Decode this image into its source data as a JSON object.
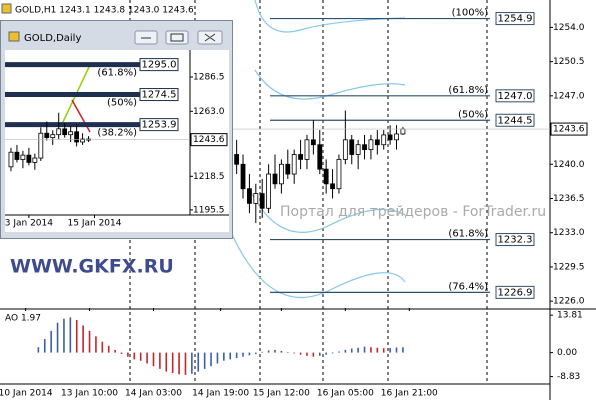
{
  "watermark": "Портал для трейдеров - ForTrader.ru",
  "broker": "WWW.GKFX.RU",
  "chart_data": [
    {
      "type": "candlestick",
      "title": "GOLD,H1  1243.1 1243.8 1243.0 1243.6",
      "xlim": [
        0,
        86
      ],
      "xticks": [
        {
          "value": 4,
          "label": "10 Jan 2014"
        },
        {
          "value": 14,
          "label": "13 Jan 10:00"
        },
        {
          "value": 24,
          "label": "14 Jan 03:00"
        },
        {
          "value": 34.5,
          "label": "14 Jan 19:00"
        },
        {
          "value": 44,
          "label": "15 Jan 12:00"
        },
        {
          "value": 54,
          "label": "16 Jan 05:00"
        },
        {
          "value": 64,
          "label": "16 Jan 21:00"
        }
      ],
      "ylim": [
        1225.3,
        1256.8
      ],
      "yticks": [
        {
          "value": 1254,
          "label": "1254.0"
        },
        {
          "value": 1250.5,
          "label": "1250.5"
        },
        {
          "value": 1247,
          "label": "1247.0"
        },
        {
          "value": 1240,
          "label": "1240.0"
        },
        {
          "value": 1236.5,
          "label": "1236.5"
        },
        {
          "value": 1233,
          "label": "1233.0"
        },
        {
          "value": 1229.5,
          "label": "1229.5"
        },
        {
          "value": 1226,
          "label": "1226.0"
        }
      ],
      "last_price": 1243.6,
      "up_color": "#ffffff",
      "down_color": "#000000",
      "x": [
        37,
        38,
        39,
        40,
        41,
        42,
        43,
        44,
        45,
        46,
        47,
        48,
        49,
        50,
        51,
        52,
        53,
        54,
        55,
        56,
        57,
        58,
        59,
        60,
        61,
        62,
        63
      ],
      "open": [
        1241,
        1240,
        1237.5,
        1236,
        1237,
        1235.5,
        1239,
        1238,
        1240,
        1239,
        1241,
        1240.5,
        1242.5,
        1242,
        1239.5,
        1238,
        1237.5,
        1240.5,
        1242.5,
        1241,
        1242,
        1241.5,
        1242.5,
        1242,
        1243,
        1242.5,
        1243.1
      ],
      "high": [
        1242.5,
        1241,
        1239,
        1238,
        1238.5,
        1240,
        1241,
        1240.5,
        1241.5,
        1241.5,
        1242.5,
        1243,
        1244.5,
        1243.5,
        1240.5,
        1239.5,
        1241,
        1245.5,
        1243,
        1242.5,
        1243,
        1243,
        1243.5,
        1243.5,
        1244,
        1244,
        1243.8
      ],
      "low": [
        1239,
        1236.5,
        1235,
        1234,
        1234.5,
        1235,
        1237.5,
        1237,
        1238.5,
        1238,
        1239.5,
        1239.5,
        1241,
        1239,
        1237,
        1236.5,
        1237,
        1240,
        1240,
        1239.5,
        1240.5,
        1240.5,
        1241,
        1241.5,
        1242,
        1241.5,
        1243.0
      ],
      "close": [
        1240,
        1237.5,
        1236,
        1237,
        1235.5,
        1239,
        1238,
        1240,
        1239,
        1241,
        1240.5,
        1242.5,
        1242,
        1239.5,
        1238,
        1237.5,
        1240.5,
        1242.5,
        1241,
        1242,
        1241.5,
        1242.5,
        1242,
        1243,
        1242.5,
        1243.1,
        1243.6
      ],
      "levels": [
        {
          "value": 1254.9,
          "ratio": "(100%)"
        },
        {
          "value": 1247,
          "label": "1247.0",
          "ratio": "(61.8%)"
        },
        {
          "value": 1244.5,
          "ratio": "(50%)"
        },
        {
          "value": 1232.3,
          "ratio": "(61.8%)"
        },
        {
          "value": 1226.9,
          "ratio": "(76.4%)"
        }
      ],
      "level_color": "#2f4f6f"
    },
    {
      "type": "bar",
      "title": "AO 1.97",
      "xlim": [
        0,
        86
      ],
      "ylim": [
        -11.2,
        15.7
      ],
      "yticks": [
        13.81,
        {
          "value": 0,
          "label": "0.00"
        },
        -8.83
      ],
      "up_color": "#3a5fa8",
      "down_color": "#c0272d",
      "x": [
        6,
        7,
        8,
        9,
        10,
        11,
        12,
        13,
        14,
        15,
        16,
        17,
        18,
        19,
        20,
        21,
        22,
        23,
        24,
        25,
        26,
        27,
        28,
        29,
        30,
        31,
        32,
        33,
        34,
        35,
        36,
        37,
        38,
        39,
        40,
        41,
        42,
        43,
        44,
        45,
        46,
        47,
        48,
        49,
        50,
        51,
        52,
        53,
        54,
        55,
        56,
        57,
        58,
        59,
        60,
        61,
        62,
        63
      ],
      "values": [
        2,
        5,
        8,
        11,
        12.5,
        13,
        12,
        10,
        8,
        6,
        4,
        2.5,
        1,
        -0.5,
        -1.5,
        -2.5,
        -3,
        -4,
        -5,
        -6,
        -7,
        -7.5,
        -8,
        -8.2,
        -7.8,
        -7,
        -6,
        -5,
        -4,
        -3,
        -2.5,
        -2,
        -1.5,
        -1,
        -0.5,
        0.3,
        0.8,
        1,
        0.6,
        0.2,
        -0.3,
        -0.8,
        -1.2,
        -1.5,
        -1.2,
        -0.8,
        -0.3,
        0.4,
        1,
        1.5,
        1.8,
        2.2,
        2,
        1.8,
        1.6,
        1.7,
        1.9,
        1.97
      ]
    },
    {
      "type": "candlestick",
      "title": "GOLD,Daily",
      "xlim": [
        0,
        31
      ],
      "xticks": [
        {
          "value": 4,
          "label": "3 Jan 2014"
        },
        {
          "value": 15,
          "label": "15 Jan 2014"
        }
      ],
      "ylim": [
        1192,
        1305
      ],
      "yticks": [
        {
          "value": 1286.5,
          "label": "1286.5"
        },
        {
          "value": 1263,
          "label": "1263.0"
        },
        {
          "value": 1218.5,
          "label": "1218.5"
        },
        {
          "value": 1195.5,
          "label": "1195.5"
        }
      ],
      "last_price": 1243.6,
      "up_color": "#ffffff",
      "down_color": "#000000",
      "x": [
        1,
        2,
        3,
        4,
        5,
        6,
        7,
        8,
        9,
        10,
        11,
        12,
        13,
        14
      ],
      "open": [
        1225,
        1235,
        1230,
        1233,
        1228,
        1231,
        1248,
        1245,
        1247,
        1251,
        1247,
        1249,
        1242,
        1244
      ],
      "high": [
        1238,
        1240,
        1236,
        1238,
        1234,
        1252,
        1256,
        1250,
        1262,
        1255,
        1253,
        1254,
        1248,
        1246
      ],
      "low": [
        1222,
        1228,
        1224,
        1226,
        1223,
        1229,
        1243,
        1240,
        1244,
        1245,
        1242,
        1239,
        1240,
        1242
      ],
      "close": [
        1235,
        1230,
        1233,
        1228,
        1231,
        1248,
        1245,
        1247,
        1251,
        1247,
        1249,
        1242,
        1244,
        1243.6
      ],
      "levels": [
        {
          "value": 1295,
          "label": "1295.0",
          "ratio": "(61.8%)"
        },
        {
          "value": 1274.5,
          "ratio": "(50%)"
        },
        {
          "value": 1253.9,
          "ratio": "(38.2%)"
        }
      ],
      "level_color": "#1f2f4f"
    }
  ]
}
